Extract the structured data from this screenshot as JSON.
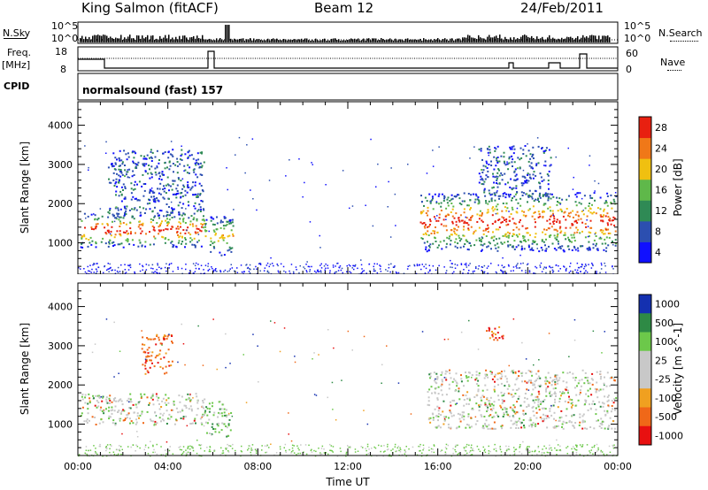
{
  "header": {
    "station": "King Salmon (fitACF)",
    "beam": "Beam 12",
    "date": "24/Feb/2011"
  },
  "panels": {
    "nsky_label": "N.Sky",
    "nsky_ticks": [
      "10^5",
      "10^0"
    ],
    "nsearch_label": "N.Search",
    "nsearch_ticks": [
      "10^5",
      "10^0"
    ],
    "freq_label_1": "Freq.",
    "freq_label_2": "[MHz]",
    "freq_ticks": [
      "18",
      "8"
    ],
    "nave_label": "Nave",
    "nave_ticks": [
      "60",
      "0"
    ],
    "cpid_label": "CPID",
    "cpid_value": "normalsound (fast) 157"
  },
  "chart_data": [
    {
      "type": "heatmap",
      "name": "Power",
      "ylabel": "Slant Range [km]",
      "yticks": [
        "1000",
        "2000",
        "3000",
        "4000"
      ],
      "ylim": [
        200,
        4600
      ],
      "xlim": [
        0,
        24
      ],
      "colorbar": {
        "label": "Power [dB]",
        "ticks": [
          "4",
          "8",
          "12",
          "16",
          "20",
          "24",
          "28"
        ],
        "colors": [
          "#1010ff",
          "#2c4fb0",
          "#2f8a55",
          "#5fb84a",
          "#f0c010",
          "#f07818",
          "#e82010"
        ]
      },
      "features": [
        {
          "t_start": 0.1,
          "t_end": 5.6,
          "r_min": 900,
          "r_max": 1800,
          "level": "high"
        },
        {
          "t_start": 1.3,
          "t_end": 5.6,
          "r_min": 1700,
          "r_max": 3400,
          "level": "low"
        },
        {
          "t_start": 5.5,
          "t_end": 6.9,
          "r_min": 700,
          "r_max": 1700,
          "level": "medium"
        },
        {
          "t_start": 15.2,
          "t_end": 23.9,
          "r_min": 800,
          "r_max": 2300,
          "level": "high"
        },
        {
          "t_start": 17.8,
          "t_end": 21.0,
          "r_min": 2200,
          "r_max": 3500,
          "level": "low"
        }
      ]
    },
    {
      "type": "heatmap",
      "name": "Velocity",
      "ylabel": "Slant Range [km]",
      "yticks": [
        "1000",
        "2000",
        "3000",
        "4000"
      ],
      "ylim": [
        200,
        4600
      ],
      "xlim": [
        0,
        24
      ],
      "xlabel": "Time UT",
      "xticks": [
        "00:00",
        "04:00",
        "08:00",
        "12:00",
        "16:00",
        "20:00",
        "00:00"
      ],
      "colorbar": {
        "label": "Velocity [m s^-1]",
        "ticks": [
          "1000",
          "500",
          "100",
          "25",
          "-25",
          "-100",
          "-500",
          "-1000"
        ],
        "colors": [
          "#1430b0",
          "#2e8a45",
          "#6cc84a",
          "#c8c8c8",
          "#c8c8c8",
          "#f0a020",
          "#f06818",
          "#e81010"
        ]
      },
      "features": [
        {
          "t_start": 0.1,
          "t_end": 5.6,
          "r_min": 1000,
          "r_max": 1800,
          "v": 0
        },
        {
          "t_start": 2.8,
          "t_end": 4.2,
          "r_min": 2300,
          "r_max": 3300,
          "v": -300
        },
        {
          "t_start": 5.6,
          "t_end": 6.8,
          "r_min": 700,
          "r_max": 1600,
          "v": 60
        },
        {
          "t_start": 15.5,
          "t_end": 23.9,
          "r_min": 900,
          "r_max": 2400,
          "v": 0
        },
        {
          "t_start": 18.0,
          "t_end": 18.9,
          "r_min": 3100,
          "r_max": 3500,
          "v": -400
        }
      ]
    }
  ]
}
